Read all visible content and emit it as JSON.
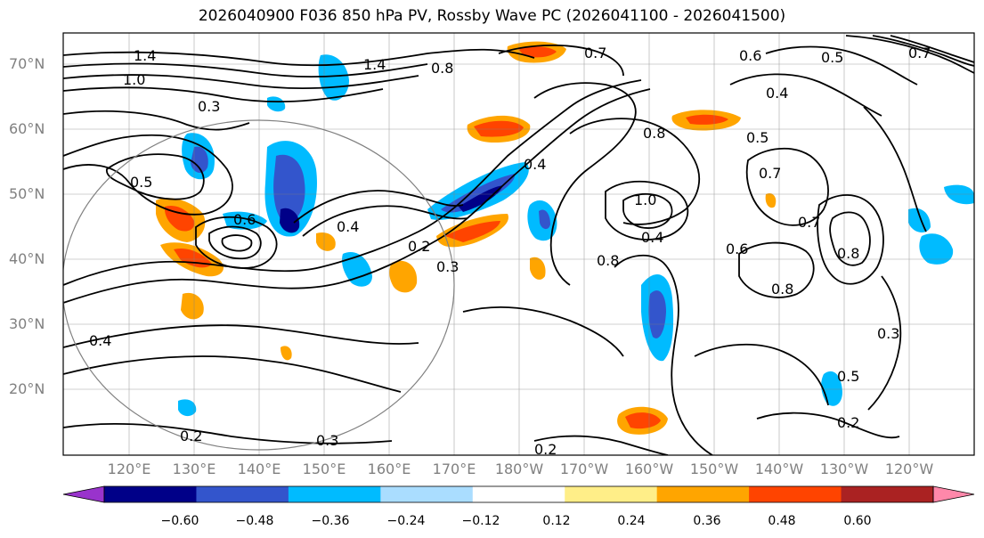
{
  "title": "2026040900 F036 850 hPa PV, Rossby Wave PC (2026041100 - 2026041500)",
  "lat_labels": [
    "70°N",
    "60°N",
    "50°N",
    "40°N",
    "30°N",
    "20°N"
  ],
  "lon_labels": [
    "120°E",
    "130°E",
    "140°E",
    "150°E",
    "160°E",
    "170°E",
    "180°W",
    "170°W",
    "160°W",
    "150°W",
    "140°W",
    "130°W",
    "120°W"
  ],
  "colorbar": {
    "ticks": [
      "−0.60",
      "−0.48",
      "−0.36",
      "−0.24",
      "−0.12",
      "0.12",
      "0.24",
      "0.36",
      "0.48",
      "0.60"
    ],
    "colors": [
      "#9933cc",
      "#000088",
      "#3355cc",
      "#00bbff",
      "#aaddff",
      "#ffffff",
      "#ffee88",
      "#ffa500",
      "#ff4400",
      "#aa2222",
      "#ff88aa"
    ]
  },
  "contour_labels": [
    "1.4",
    "1.0",
    "0.3",
    "0.5",
    "0.6",
    "0.7",
    "0.8",
    "0.4",
    "0.2",
    "0.3",
    "0.7",
    "0.6",
    "0.5",
    "0.4",
    "0.5",
    "0.8",
    "1.0",
    "0.4",
    "0.7",
    "0.8",
    "0.8",
    "0.6",
    "0.8",
    "0.7",
    "0.5",
    "0.3",
    "0.2",
    "0.2",
    "0.3",
    "0.2",
    "0.4",
    "1.4",
    "0.4"
  ],
  "colors": {
    "frame": "#000000",
    "grid": "#808080",
    "contour": "#000000",
    "label": "#808080"
  }
}
